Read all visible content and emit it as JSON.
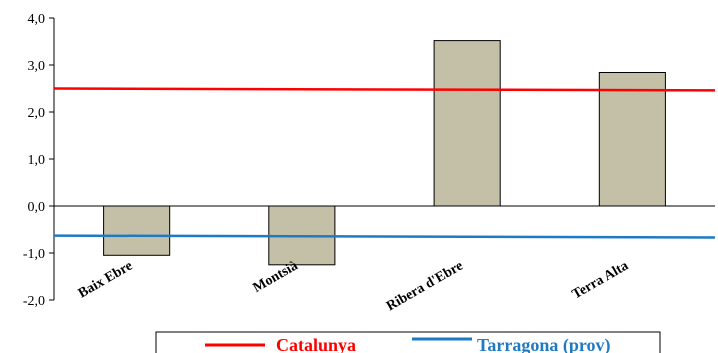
{
  "chart_data": {
    "type": "bar",
    "categories": [
      "Baix Ebre",
      "Montsià",
      "Ribera d'Ebre",
      "Terra Alta"
    ],
    "values": [
      -1.05,
      -1.25,
      3.52,
      2.84
    ],
    "ylim": [
      -2.0,
      4.0
    ],
    "yticks": [
      -2.0,
      -1.0,
      0.0,
      1.0,
      2.0,
      3.0,
      4.0
    ],
    "ytick_labels": [
      "-2,0",
      "-1,0",
      "0,0",
      "1,0",
      "2,0",
      "3,0",
      "4,0"
    ],
    "grid": false,
    "bar_color": "#c4c0a8",
    "bar_edge": "#000000",
    "reference_lines": [
      {
        "name": "Catalunya",
        "y_start": 2.5,
        "y_end": 2.46,
        "color": "#ff0000"
      },
      {
        "name": "Tarragona (prov)",
        "y_start": -0.63,
        "y_end": -0.67,
        "color": "#1f7ac4"
      }
    ],
    "legend_position": "bottom"
  }
}
